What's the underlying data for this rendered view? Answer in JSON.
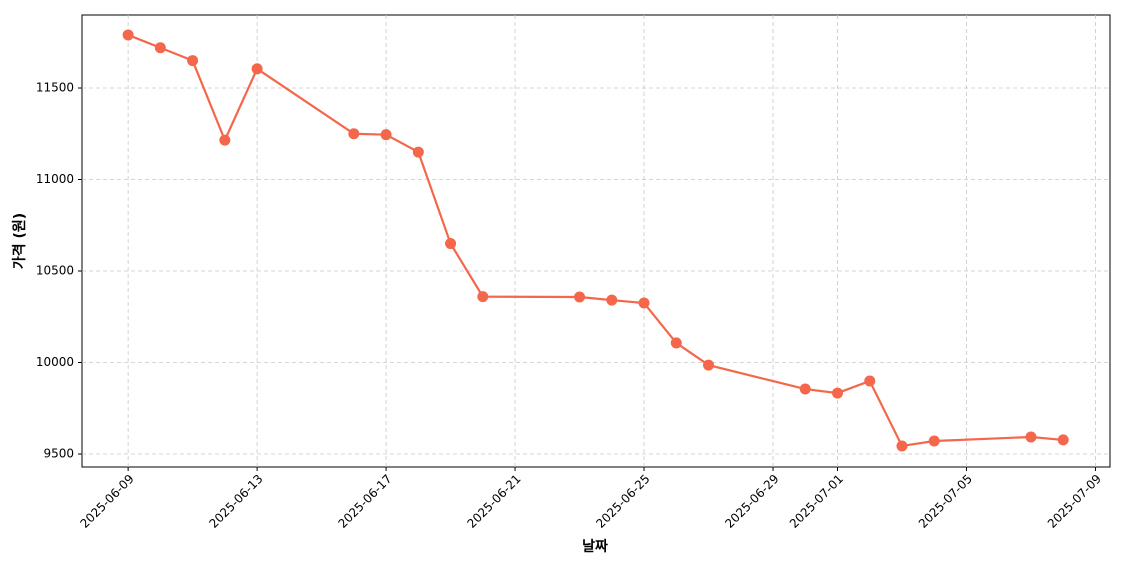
{
  "chart_data": {
    "type": "line",
    "xlabel": "날짜",
    "ylabel": "가격 (원)",
    "x": [
      "2025-06-09",
      "2025-06-10",
      "2025-06-11",
      "2025-06-12",
      "2025-06-13",
      "2025-06-16",
      "2025-06-17",
      "2025-06-18",
      "2025-06-19",
      "2025-06-20",
      "2025-06-23",
      "2025-06-24",
      "2025-06-25",
      "2025-06-26",
      "2025-06-27",
      "2025-06-30",
      "2025-07-01",
      "2025-07-02",
      "2025-07-03",
      "2025-07-04",
      "2025-07-07",
      "2025-07-08"
    ],
    "values": [
      11790,
      11720,
      11650,
      11215,
      11605,
      11250,
      11245,
      11150,
      10650,
      10360,
      10358,
      10341,
      10325,
      10107,
      9986,
      9855,
      9833,
      9899,
      9544,
      9571,
      9593,
      9577
    ],
    "color": "#f4674a",
    "xlim": [
      "2025-06-07T13:40",
      "2025-07-09T10:50"
    ],
    "xticks": [
      "2025-06-09",
      "2025-06-13",
      "2025-06-17",
      "2025-06-21",
      "2025-06-25",
      "2025-06-29",
      "2025-07-01",
      "2025-07-05",
      "2025-07-09"
    ],
    "ylim": [
      9429,
      11899
    ],
    "yticks": [
      9500,
      10000,
      10500,
      11000,
      11500
    ],
    "grid": true
  }
}
